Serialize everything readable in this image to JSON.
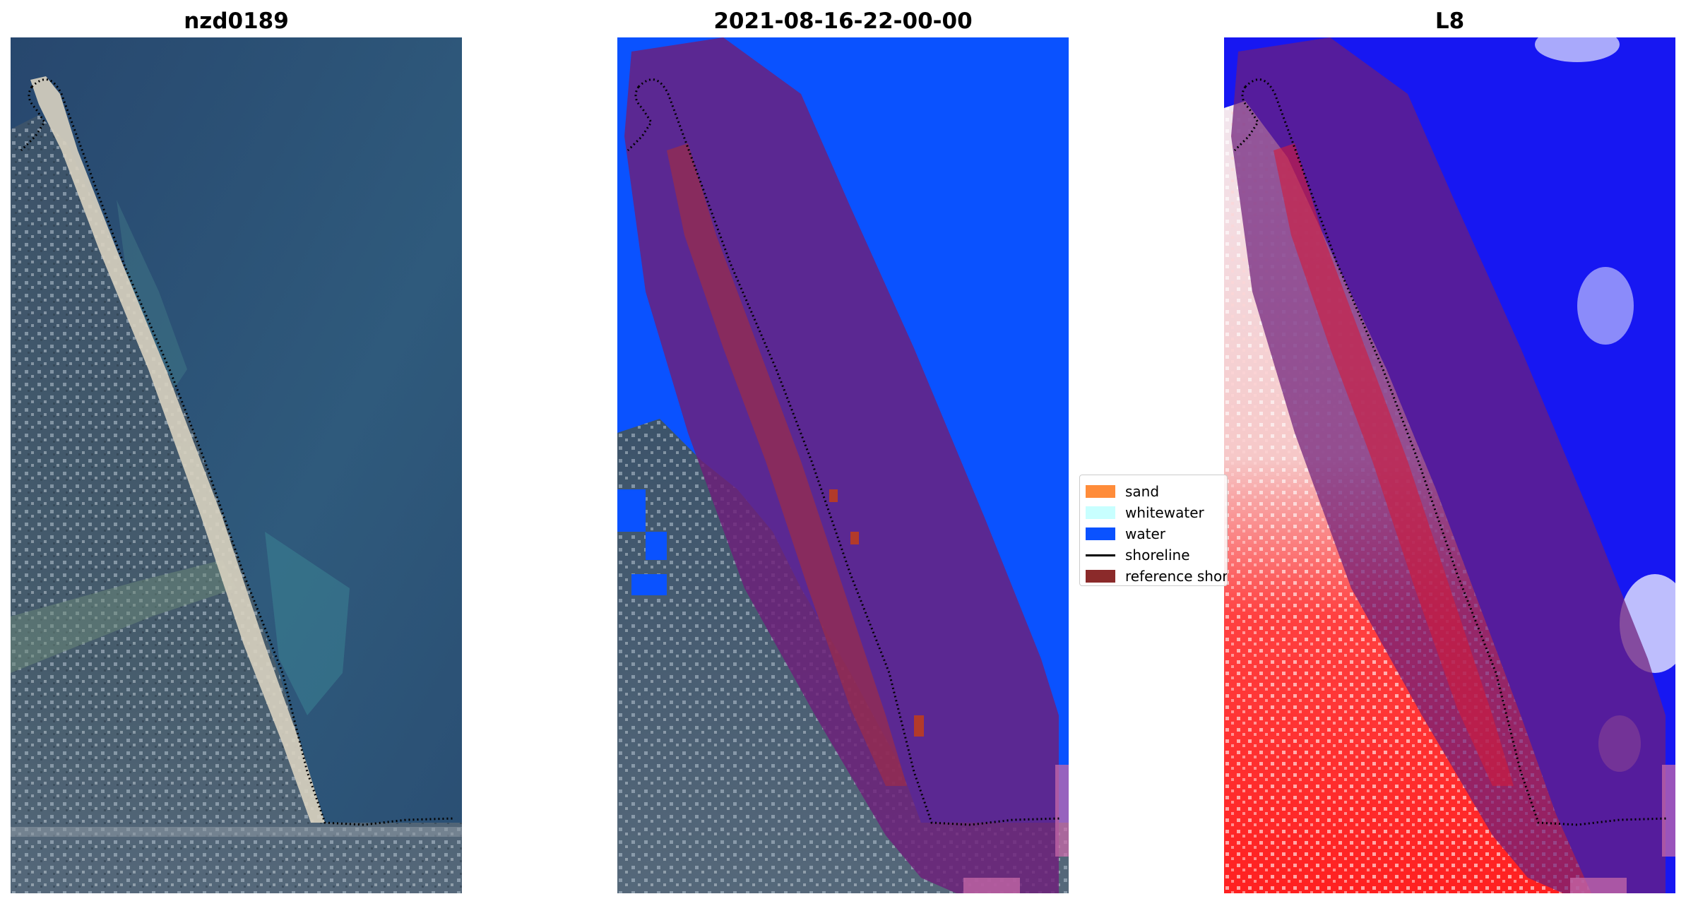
{
  "panels": [
    {
      "title": "nzd0189"
    },
    {
      "title": "2021-08-16-22-00-00"
    },
    {
      "title": "L8"
    }
  ],
  "legend": {
    "items": [
      {
        "label": "sand",
        "color": "#ff8c3a"
      },
      {
        "label": "whitewater",
        "color": "#c8ffff"
      },
      {
        "label": "water",
        "color": "#0a52ff"
      },
      {
        "label": "shoreline",
        "color": "#000000"
      },
      {
        "label": "reference shoreline",
        "color": "#8b2a2a"
      }
    ]
  },
  "colors": {
    "sea_rgb": "#2e5478",
    "beach": "#d8d2c0",
    "water_class": "#0a52ff",
    "buffer_overlay": "#6e1f7a",
    "index_positive": "#ff1a1a",
    "index_negative": "#1a1aff"
  }
}
